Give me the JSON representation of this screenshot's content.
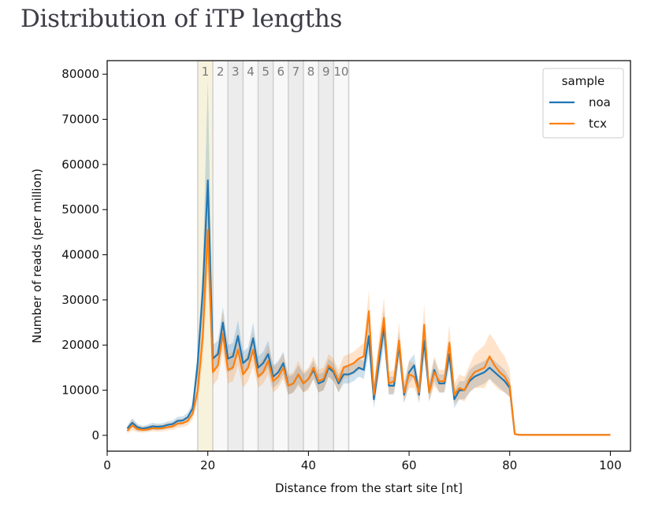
{
  "page": {
    "title": "Distribution of iTP lengths"
  },
  "chart_data": {
    "type": "line",
    "title": "Distribution of iTP lengths",
    "xlabel": "Distance from the start site [nt]",
    "ylabel": "Number of reads (per million)",
    "xlim": [
      0,
      104
    ],
    "ylim": [
      -3500,
      83000
    ],
    "xticks": [
      0,
      20,
      40,
      60,
      80,
      100
    ],
    "yticks": [
      0,
      10000,
      20000,
      30000,
      40000,
      50000,
      60000,
      70000,
      80000
    ],
    "grid": false,
    "legend": {
      "title": "sample",
      "position": "upper right",
      "entries": [
        "noa",
        "tcx"
      ]
    },
    "regions": [
      {
        "label": "1",
        "start": 18,
        "end": 21,
        "color": "#f7f2dc"
      },
      {
        "label": "2",
        "start": 21,
        "end": 24,
        "color": "#f8f8f8"
      },
      {
        "label": "3",
        "start": 24,
        "end": 27,
        "color": "#ececec"
      },
      {
        "label": "4",
        "start": 27,
        "end": 30,
        "color": "#f8f8f8"
      },
      {
        "label": "5",
        "start": 30,
        "end": 33,
        "color": "#ececec"
      },
      {
        "label": "6",
        "start": 33,
        "end": 36,
        "color": "#f8f8f8"
      },
      {
        "label": "7",
        "start": 36,
        "end": 39,
        "color": "#ececec"
      },
      {
        "label": "8",
        "start": 39,
        "end": 42,
        "color": "#f8f8f8"
      },
      {
        "label": "9",
        "start": 42,
        "end": 45,
        "color": "#ececec"
      },
      {
        "label": "10",
        "start": 45,
        "end": 48,
        "color": "#f8f8f8"
      }
    ],
    "x": [
      4,
      5,
      6,
      7,
      8,
      9,
      10,
      11,
      12,
      13,
      14,
      15,
      16,
      17,
      18,
      19,
      20,
      21,
      22,
      23,
      24,
      25,
      26,
      27,
      28,
      29,
      30,
      31,
      32,
      33,
      34,
      35,
      36,
      37,
      38,
      39,
      40,
      41,
      42,
      43,
      44,
      45,
      46,
      47,
      48,
      49,
      50,
      51,
      52,
      53,
      54,
      55,
      56,
      57,
      58,
      59,
      60,
      61,
      62,
      63,
      64,
      65,
      66,
      67,
      68,
      69,
      70,
      71,
      72,
      73,
      74,
      75,
      76,
      77,
      78,
      79,
      80,
      81,
      82,
      83,
      84,
      85,
      86,
      87,
      88,
      89,
      90,
      91,
      92,
      93,
      94,
      95,
      96,
      97,
      98,
      99,
      100
    ],
    "series": [
      {
        "name": "noa",
        "color": "#1f77b4",
        "values": [
          1500,
          2800,
          1800,
          1500,
          1700,
          2000,
          1900,
          2000,
          2300,
          2500,
          3200,
          3300,
          4000,
          6000,
          16000,
          32000,
          56500,
          17000,
          18000,
          25000,
          17000,
          17500,
          22000,
          16000,
          17000,
          21500,
          15000,
          16000,
          18000,
          13000,
          14000,
          16000,
          11000,
          11500,
          13500,
          11500,
          12500,
          14500,
          11500,
          12000,
          15000,
          14000,
          11500,
          13500,
          13500,
          14000,
          15000,
          14500,
          22000,
          8000,
          16000,
          24000,
          11000,
          11000,
          20000,
          9000,
          14000,
          15500,
          9000,
          21000,
          9500,
          14500,
          11500,
          11500,
          18000,
          8000,
          10000,
          10000,
          12000,
          13000,
          13500,
          14000,
          15000,
          14000,
          13000,
          12000,
          10500,
          300,
          100,
          100,
          100,
          100,
          100,
          100,
          100,
          100,
          100,
          100,
          100,
          100,
          100,
          100,
          100,
          100,
          100,
          100,
          100
        ],
        "band_lower": [
          800,
          1800,
          1000,
          900,
          1000,
          1200,
          1200,
          1300,
          1500,
          1700,
          2300,
          2400,
          3000,
          4800,
          13000,
          27000,
          44000,
          14000,
          15000,
          21000,
          14000,
          14500,
          18500,
          13500,
          14500,
          18000,
          12500,
          13500,
          15000,
          10500,
          11500,
          13500,
          9000,
          9500,
          11500,
          9500,
          10500,
          12500,
          9500,
          10000,
          13000,
          12000,
          9500,
          11500,
          11500,
          12000,
          13000,
          12500,
          18000,
          6000,
          13000,
          20000,
          9000,
          9000,
          17000,
          7000,
          11500,
          13000,
          7000,
          17500,
          7500,
          12000,
          9500,
          9500,
          15000,
          6000,
          8000,
          8000,
          9500,
          10500,
          11000,
          11500,
          12500,
          11500,
          10500,
          9500,
          8500,
          100,
          50,
          50,
          50,
          50,
          50,
          50,
          50,
          50,
          50,
          50,
          50,
          50,
          50,
          50,
          50,
          50,
          50,
          50,
          50
        ],
        "band_upper": [
          2200,
          3800,
          2600,
          2100,
          2400,
          2800,
          2600,
          2700,
          3100,
          3300,
          4100,
          4200,
          5000,
          7200,
          19000,
          37000,
          79000,
          20000,
          21000,
          28500,
          20000,
          20500,
          25500,
          18500,
          19500,
          25000,
          17500,
          18500,
          21000,
          15500,
          16500,
          18500,
          13000,
          13500,
          15500,
          13500,
          14500,
          16500,
          13500,
          14000,
          17000,
          16000,
          13500,
          15500,
          15500,
          16000,
          17000,
          16500,
          26000,
          10000,
          19000,
          28000,
          13000,
          13000,
          23000,
          11000,
          16500,
          18000,
          11000,
          24500,
          11500,
          17000,
          13500,
          13500,
          21000,
          10000,
          12000,
          12000,
          14500,
          15500,
          16000,
          16500,
          17500,
          16500,
          15500,
          14500,
          12500,
          500,
          150,
          150,
          150,
          150,
          150,
          150,
          150,
          150,
          150,
          150,
          150,
          150,
          150,
          150,
          150,
          150,
          150,
          150,
          150
        ]
      },
      {
        "name": "tcx",
        "color": "#ff7f0e",
        "values": [
          1000,
          2200,
          1400,
          1200,
          1300,
          1600,
          1500,
          1600,
          1800,
          2000,
          2600,
          2700,
          3200,
          4800,
          10000,
          22000,
          45500,
          14000,
          15500,
          22500,
          14500,
          15000,
          19000,
          13500,
          15000,
          19000,
          13000,
          14000,
          16500,
          12000,
          13000,
          15000,
          11000,
          11500,
          13500,
          11500,
          12500,
          15000,
          12000,
          12500,
          15500,
          14500,
          12000,
          15000,
          15500,
          16000,
          17000,
          17500,
          27500,
          9000,
          18000,
          26000,
          11500,
          12000,
          21000,
          9500,
          13500,
          13000,
          9500,
          24500,
          9500,
          14000,
          12000,
          12000,
          20500,
          9000,
          10500,
          10000,
          12500,
          14000,
          14500,
          15000,
          17500,
          15500,
          14000,
          13000,
          11000,
          300,
          100,
          100,
          100,
          100,
          100,
          100,
          100,
          100,
          100,
          100,
          100,
          100,
          100,
          100,
          100,
          100,
          100,
          100,
          100
        ],
        "band_lower": [
          400,
          1100,
          700,
          600,
          700,
          900,
          800,
          900,
          1100,
          1200,
          1700,
          1800,
          2200,
          3500,
          7500,
          17000,
          36000,
          11000,
          12500,
          18500,
          11500,
          12000,
          15500,
          10500,
          12000,
          15500,
          10500,
          11500,
          13500,
          9500,
          10500,
          12500,
          9000,
          9500,
          11000,
          9500,
          10000,
          12500,
          9500,
          10000,
          13000,
          12000,
          9500,
          12500,
          13000,
          13500,
          14500,
          14500,
          23000,
          7000,
          14500,
          21500,
          9000,
          9500,
          17500,
          7500,
          10500,
          10500,
          7500,
          20000,
          7500,
          11000,
          9500,
          9500,
          16500,
          7000,
          8000,
          7500,
          9500,
          10500,
          10500,
          10500,
          12500,
          11000,
          10000,
          9500,
          8500,
          100,
          50,
          50,
          50,
          50,
          50,
          50,
          50,
          50,
          50,
          50,
          50,
          50,
          50,
          50,
          50,
          50,
          50,
          50,
          50
        ],
        "band_upper": [
          1800,
          3600,
          2300,
          1900,
          2000,
          2400,
          2300,
          2400,
          2700,
          2900,
          3600,
          3700,
          4400,
          6400,
          13000,
          28000,
          56000,
          17500,
          19000,
          27500,
          18000,
          18500,
          23000,
          16500,
          18500,
          23000,
          16000,
          17000,
          20000,
          15000,
          16000,
          18000,
          13500,
          14000,
          16500,
          14000,
          15000,
          17500,
          14500,
          15000,
          18000,
          17000,
          14500,
          17500,
          18000,
          18500,
          19500,
          20500,
          32000,
          11500,
          21500,
          30500,
          14000,
          14500,
          25000,
          12000,
          16500,
          16000,
          12000,
          29000,
          12000,
          17500,
          14500,
          14500,
          24500,
          11500,
          13500,
          13000,
          15500,
          18000,
          19000,
          20000,
          22500,
          21000,
          19000,
          17500,
          14500,
          500,
          150,
          150,
          150,
          150,
          150,
          150,
          150,
          150,
          150,
          150,
          150,
          150,
          150,
          150,
          150,
          150,
          150,
          150,
          150
        ]
      }
    ]
  }
}
